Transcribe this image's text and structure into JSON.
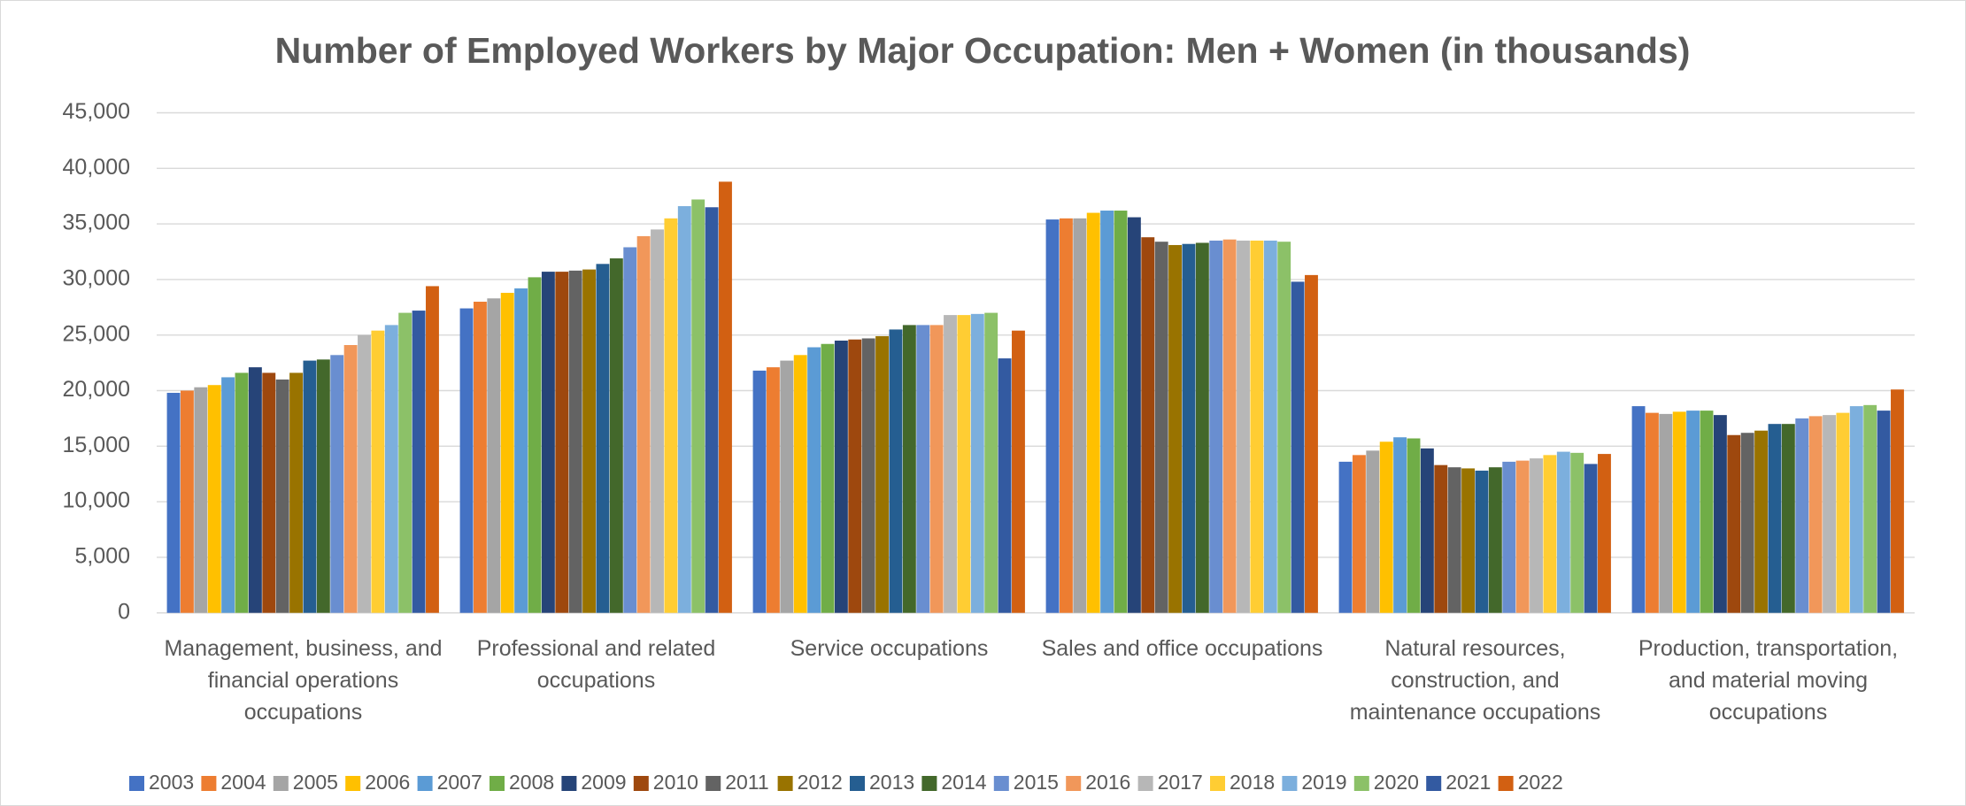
{
  "chart_data": {
    "type": "bar",
    "title": "Number of Employed Workers by Major Occupation: Men + Women (in thousands)",
    "categories": [
      "Management, business, and financial operations occupations",
      "Professional and related occupations",
      "Service occupations",
      "Sales and office occupations",
      "Natural resources, construction, and maintenance occupations",
      "Production, transportation, and material moving occupations"
    ],
    "series": [
      {
        "name": "2003",
        "color": "#4472c4",
        "values": [
          19800,
          27400,
          21800,
          35400,
          13600,
          18600
        ]
      },
      {
        "name": "2004",
        "color": "#ed7d31",
        "values": [
          20000,
          28000,
          22100,
          35500,
          14200,
          18000
        ]
      },
      {
        "name": "2005",
        "color": "#a5a5a5",
        "values": [
          20300,
          28300,
          22700,
          35500,
          14600,
          17900
        ]
      },
      {
        "name": "2006",
        "color": "#ffc000",
        "values": [
          20500,
          28800,
          23200,
          36000,
          15400,
          18100
        ]
      },
      {
        "name": "2007",
        "color": "#5b9bd5",
        "values": [
          21200,
          29200,
          23900,
          36200,
          15800,
          18200
        ]
      },
      {
        "name": "2008",
        "color": "#70ad47",
        "values": [
          21600,
          30200,
          24200,
          36200,
          15700,
          18200
        ]
      },
      {
        "name": "2009",
        "color": "#264478",
        "values": [
          22100,
          30700,
          24500,
          35600,
          14800,
          17800
        ]
      },
      {
        "name": "2010",
        "color": "#9e480e",
        "values": [
          21600,
          30700,
          24600,
          33800,
          13300,
          16000
        ]
      },
      {
        "name": "2011",
        "color": "#636363",
        "values": [
          21000,
          30800,
          24700,
          33400,
          13100,
          16200
        ]
      },
      {
        "name": "2012",
        "color": "#997300",
        "values": [
          21600,
          30900,
          24900,
          33100,
          13000,
          16400
        ]
      },
      {
        "name": "2013",
        "color": "#255e91",
        "values": [
          22700,
          31400,
          25500,
          33200,
          12800,
          17000
        ]
      },
      {
        "name": "2014",
        "color": "#43682b",
        "values": [
          22800,
          31900,
          25900,
          33300,
          13100,
          17000
        ]
      },
      {
        "name": "2015",
        "color": "#698ed0",
        "values": [
          23200,
          32900,
          25900,
          33500,
          13600,
          17500
        ]
      },
      {
        "name": "2016",
        "color": "#f1975a",
        "values": [
          24100,
          33900,
          25900,
          33600,
          13700,
          17700
        ]
      },
      {
        "name": "2017",
        "color": "#b7b7b7",
        "values": [
          25000,
          34500,
          26800,
          33500,
          13900,
          17800
        ]
      },
      {
        "name": "2018",
        "color": "#ffcd33",
        "values": [
          25400,
          35500,
          26800,
          33500,
          14200,
          18000
        ]
      },
      {
        "name": "2019",
        "color": "#7cafdd",
        "values": [
          25900,
          36600,
          26900,
          33500,
          14500,
          18600
        ]
      },
      {
        "name": "2020",
        "color": "#8cc168",
        "values": [
          27000,
          37200,
          27000,
          33400,
          14400,
          18700
        ]
      },
      {
        "name": "2021",
        "color": "#335aa1",
        "values": [
          27200,
          36500,
          22900,
          29800,
          13400,
          18200
        ]
      },
      {
        "name": "2022",
        "color": "#d26012",
        "values": [
          29400,
          38800,
          25400,
          30400,
          14300,
          20100
        ]
      }
    ],
    "ylim": [
      0,
      45000
    ],
    "yticks": [
      0,
      {
        "value": 5000,
        "label": "5,000"
      },
      {
        "value": 10000,
        "label": "10,000"
      },
      {
        "value": 15000,
        "label": "15,000"
      },
      {
        "value": 20000,
        "label": "20,000"
      },
      {
        "value": 25000,
        "label": "25,000"
      },
      {
        "value": 30000,
        "label": "30,000"
      },
      {
        "value": 35000,
        "label": "35,000"
      },
      {
        "value": 40000,
        "label": "40,000"
      },
      {
        "value": 45000,
        "label": "45,000"
      }
    ],
    "grid": true,
    "legend": "bottom"
  }
}
